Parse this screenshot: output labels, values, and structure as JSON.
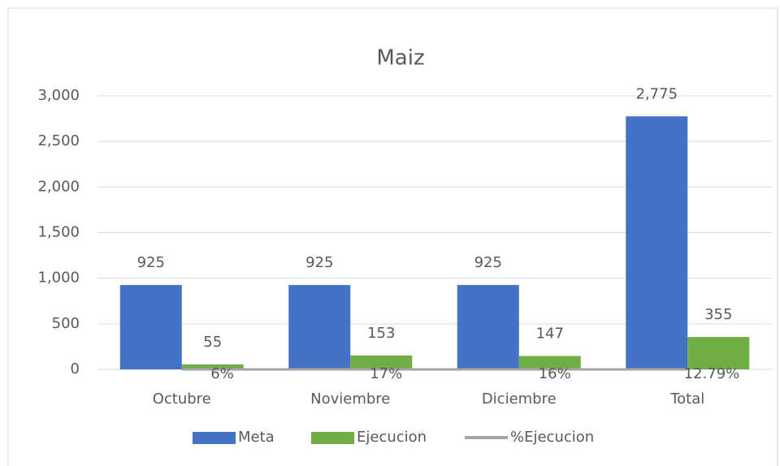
{
  "chart_data": {
    "type": "bar",
    "title": "Maiz",
    "categories": [
      "Octubre",
      "Noviembre",
      "Diciembre",
      "Total"
    ],
    "series": [
      {
        "name": "Meta",
        "type": "bar",
        "color": "#4472c4",
        "values": [
          925,
          925,
          925,
          2775
        ],
        "value_labels": [
          "925",
          "925",
          "925",
          "2,775"
        ]
      },
      {
        "name": "Ejecucion",
        "type": "bar",
        "color": "#70ad47",
        "values": [
          55,
          153,
          147,
          355
        ]
      },
      {
        "name": "%Ejecucion",
        "type": "line",
        "color": "#a5a5a5",
        "values": [
          0.06,
          0.17,
          0.16,
          0.1279
        ],
        "value_labels": [
          "6%",
          "17%",
          "16%",
          "12.79%"
        ]
      }
    ],
    "ylim": [
      0,
      3000
    ],
    "yticks": [
      0,
      500,
      {
        "value": 1000,
        "label": "1,000"
      },
      {
        "value": 1500,
        "label": "1,500"
      },
      {
        "value": 2000,
        "label": "2,000"
      },
      {
        "value": 2500,
        "label": "2,500"
      },
      {
        "value": 3000,
        "label": "3,000"
      }
    ],
    "grid": true,
    "legend": "bottom"
  }
}
